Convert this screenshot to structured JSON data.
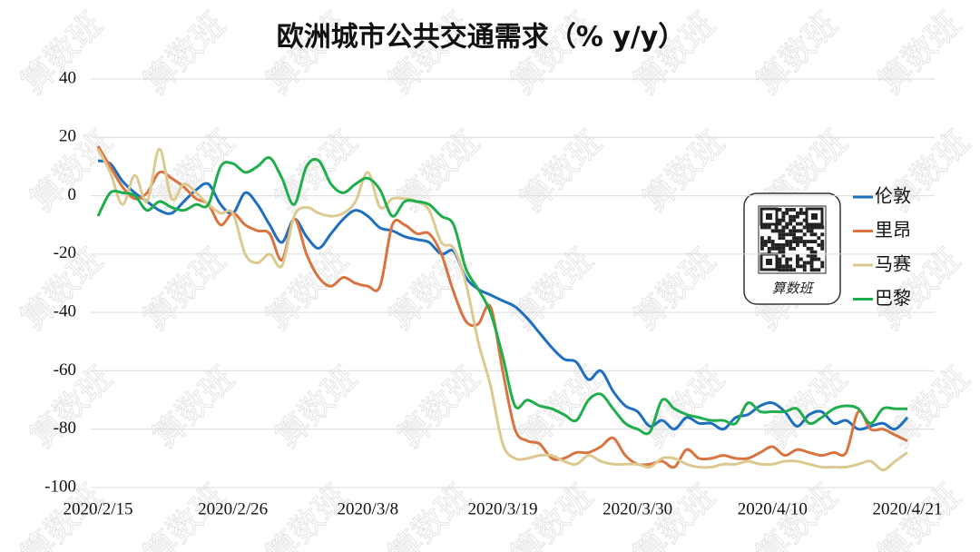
{
  "chart_data": {
    "type": "line",
    "title": "欧洲城市公共交通需求（% y/y）",
    "x": [
      "2020/2/15",
      "2020/2/16",
      "2020/2/17",
      "2020/2/18",
      "2020/2/19",
      "2020/2/20",
      "2020/2/21",
      "2020/2/22",
      "2020/2/23",
      "2020/2/24",
      "2020/2/25",
      "2020/2/26",
      "2020/2/27",
      "2020/2/28",
      "2020/2/29",
      "2020/3/1",
      "2020/3/2",
      "2020/3/3",
      "2020/3/4",
      "2020/3/5",
      "2020/3/6",
      "2020/3/7",
      "2020/3/8",
      "2020/3/9",
      "2020/3/10",
      "2020/3/11",
      "2020/3/12",
      "2020/3/13",
      "2020/3/14",
      "2020/3/15",
      "2020/3/16",
      "2020/3/17",
      "2020/3/18",
      "2020/3/19",
      "2020/3/20",
      "2020/3/21",
      "2020/3/22",
      "2020/3/23",
      "2020/3/24",
      "2020/3/25",
      "2020/3/26",
      "2020/3/27",
      "2020/3/28",
      "2020/3/29",
      "2020/3/30",
      "2020/3/31",
      "2020/4/1",
      "2020/4/2",
      "2020/4/3",
      "2020/4/4",
      "2020/4/5",
      "2020/4/6",
      "2020/4/7",
      "2020/4/8",
      "2020/4/9",
      "2020/4/10",
      "2020/4/11",
      "2020/4/12",
      "2020/4/13",
      "2020/4/14",
      "2020/4/15",
      "2020/4/16",
      "2020/4/17",
      "2020/4/18",
      "2020/4/19",
      "2020/4/20",
      "2020/4/21"
    ],
    "xticks": [
      "2020/2/15",
      "2020/2/26",
      "2020/3/8",
      "2020/3/19",
      "2020/3/30",
      "2020/4/10",
      "2020/4/21"
    ],
    "series": [
      {
        "name": "伦敦",
        "color": "#1f6fc0",
        "values": [
          12,
          11,
          5,
          1,
          -2,
          -5,
          -6,
          -2,
          2,
          4,
          -3,
          -6,
          1,
          -3,
          -10,
          -16,
          -8,
          -14,
          -18,
          -13,
          -8,
          -5,
          -7,
          -11,
          -12,
          -14,
          -15,
          -16,
          -20,
          -19,
          -28,
          -32,
          -34,
          -36,
          -38,
          -42,
          -47,
          -52,
          -56,
          -57,
          -63,
          -60,
          -67,
          -72,
          -74,
          -79,
          -77,
          -80,
          -76,
          -78,
          -78,
          -80,
          -76,
          -75,
          -72,
          -71,
          -74,
          -79,
          -75,
          -74,
          -78,
          -77,
          -80,
          -79,
          -78,
          -80,
          -76
        ]
      },
      {
        "name": "里昂",
        "color": "#d9733f",
        "values": [
          17,
          10,
          3,
          -1,
          1,
          8,
          6,
          3,
          -1,
          -3,
          -10,
          -6,
          -10,
          -12,
          -13,
          -22,
          -8,
          -20,
          -28,
          -31,
          -28,
          -30,
          -31,
          -31,
          -10,
          -10,
          -13,
          -13,
          -20,
          -33,
          -43,
          -44,
          -38,
          -60,
          -80,
          -84,
          -85,
          -90,
          -90,
          -88,
          -88,
          -86,
          -83,
          -89,
          -92,
          -92,
          -91,
          -93,
          -87,
          -90,
          -90,
          -89,
          -90,
          -90,
          -88,
          -86,
          -89,
          -87,
          -88,
          -89,
          -88,
          -88,
          -74,
          -80,
          -80,
          -82,
          -84
        ]
      },
      {
        "name": "马赛",
        "color": "#dcc98f",
        "values": [
          16,
          8,
          -3,
          7,
          -2,
          16,
          -1,
          4,
          1,
          -3,
          -6,
          -6,
          -20,
          -23,
          -20,
          -24,
          -7,
          -4,
          -6,
          -7,
          -6,
          -2,
          8,
          -4,
          -1,
          -1,
          -2,
          -5,
          -16,
          -18,
          -30,
          -50,
          -65,
          -85,
          -90,
          -90,
          -89,
          -89,
          -91,
          -92,
          -89,
          -91,
          -92,
          -92,
          -92,
          -93,
          -90,
          -90,
          -92,
          -93,
          -93,
          -92,
          -92,
          -91,
          -92,
          -92,
          -91,
          -91,
          -92,
          -93,
          -93,
          -93,
          -92,
          -91,
          -94,
          -91,
          -88
        ]
      },
      {
        "name": "巴黎",
        "color": "#1fae4b",
        "values": [
          -7,
          1,
          1,
          0,
          -5,
          -2,
          -4,
          -5,
          -3,
          -3,
          10,
          11,
          8,
          10,
          13,
          6,
          -3,
          10,
          12,
          4,
          1,
          4,
          6,
          2,
          -7,
          -2,
          -2,
          -3,
          -7,
          -10,
          -25,
          -32,
          -40,
          -55,
          -72,
          -70,
          -72,
          -73,
          -75,
          -77,
          -70,
          -68,
          -73,
          -78,
          -80,
          -81,
          -70,
          -73,
          -75,
          -76,
          -77,
          -77,
          -78,
          -71,
          -74,
          -74,
          -74,
          -73,
          -78,
          -76,
          -73,
          -72,
          -73,
          -78,
          -73,
          -73,
          -73
        ]
      }
    ],
    "ylim": [
      -100,
      40
    ],
    "yticks": [
      -100,
      -80,
      -60,
      -40,
      -20,
      0,
      20,
      40
    ],
    "grid": true,
    "watermark": "算数班"
  }
}
